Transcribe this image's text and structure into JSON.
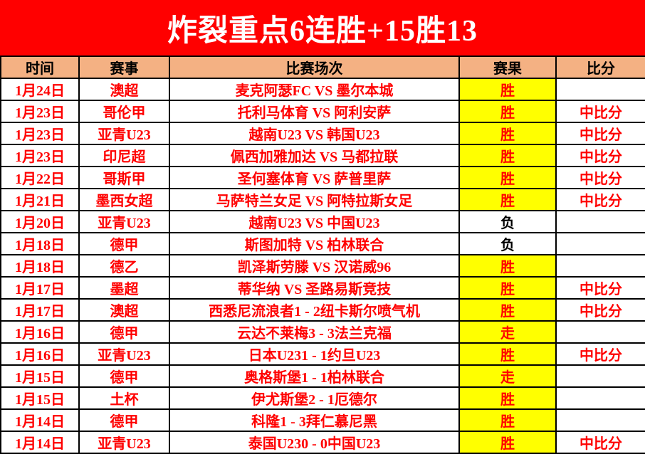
{
  "banner": {
    "title": "炸裂重点6连胜+15胜13",
    "bg_color": "#FF0000",
    "text_color": "#FFFFFF"
  },
  "table": {
    "headers": [
      "时间",
      "赛事",
      "比赛场次",
      "赛果",
      "比分"
    ],
    "header_bg_color": "#F4B183",
    "row_text_color": "#FF0000",
    "result_highlight_color": "#FFFF00",
    "rows": [
      {
        "date": "1月24日",
        "league": "澳超",
        "match": "麦克阿瑟FC VS 墨尔本城",
        "result": "胜",
        "highlight": true,
        "score": ""
      },
      {
        "date": "1月23日",
        "league": "哥伦甲",
        "match": "托利马体育 VS 阿利安萨",
        "result": "胜",
        "highlight": true,
        "score": "中比分"
      },
      {
        "date": "1月23日",
        "league": "亚青U23",
        "match": "越南U23 VS 韩国U23",
        "result": "胜",
        "highlight": true,
        "score": "中比分"
      },
      {
        "date": "1月23日",
        "league": "印尼超",
        "match": "佩西加雅加达 VS 马都拉联",
        "result": "胜",
        "highlight": true,
        "score": "中比分"
      },
      {
        "date": "1月22日",
        "league": "哥斯甲",
        "match": "圣何塞体育 VS 萨普里萨",
        "result": "胜",
        "highlight": true,
        "score": "中比分"
      },
      {
        "date": "1月21日",
        "league": "墨西女超",
        "match": "马萨特兰女足 VS 阿特拉斯女足",
        "result": "胜",
        "highlight": true,
        "score": "中比分"
      },
      {
        "date": "1月20日",
        "league": "亚青U23",
        "match": "越南U23 VS 中国U23",
        "result": "负",
        "highlight": false,
        "score": ""
      },
      {
        "date": "1月18日",
        "league": "德甲",
        "match": "斯图加特 VS 柏林联合",
        "result": "负",
        "highlight": false,
        "score": ""
      },
      {
        "date": "1月18日",
        "league": "德乙",
        "match": "凯泽斯劳滕 VS 汉诺威96",
        "result": "胜",
        "highlight": true,
        "score": ""
      },
      {
        "date": "1月17日",
        "league": "墨超",
        "match": "蒂华纳 VS 圣路易斯竞技",
        "result": "胜",
        "highlight": true,
        "score": "中比分"
      },
      {
        "date": "1月17日",
        "league": "澳超",
        "match": "西悉尼流浪者1 - 2纽卡斯尔喷气机",
        "result": "胜",
        "highlight": true,
        "score": "中比分"
      },
      {
        "date": "1月16日",
        "league": "德甲",
        "match": "云达不莱梅3 - 3法兰克福",
        "result": "走",
        "highlight": true,
        "score": ""
      },
      {
        "date": "1月16日",
        "league": "亚青U23",
        "match": "日本U231 - 1约旦U23",
        "result": "胜",
        "highlight": true,
        "score": "中比分"
      },
      {
        "date": "1月15日",
        "league": "德甲",
        "match": "奥格斯堡1 - 1柏林联合",
        "result": "走",
        "highlight": true,
        "score": ""
      },
      {
        "date": "1月15日",
        "league": "土杯",
        "match": "伊尤斯堡2 - 1厄德尔",
        "result": "胜",
        "highlight": true,
        "score": ""
      },
      {
        "date": "1月14日",
        "league": "德甲",
        "match": "科隆1 - 3拜仁慕尼黑",
        "result": "胜",
        "highlight": true,
        "score": ""
      },
      {
        "date": "1月14日",
        "league": "亚青U23",
        "match": "泰国U230 - 0中国U23",
        "result": "胜",
        "highlight": true,
        "score": "中比分"
      }
    ]
  }
}
